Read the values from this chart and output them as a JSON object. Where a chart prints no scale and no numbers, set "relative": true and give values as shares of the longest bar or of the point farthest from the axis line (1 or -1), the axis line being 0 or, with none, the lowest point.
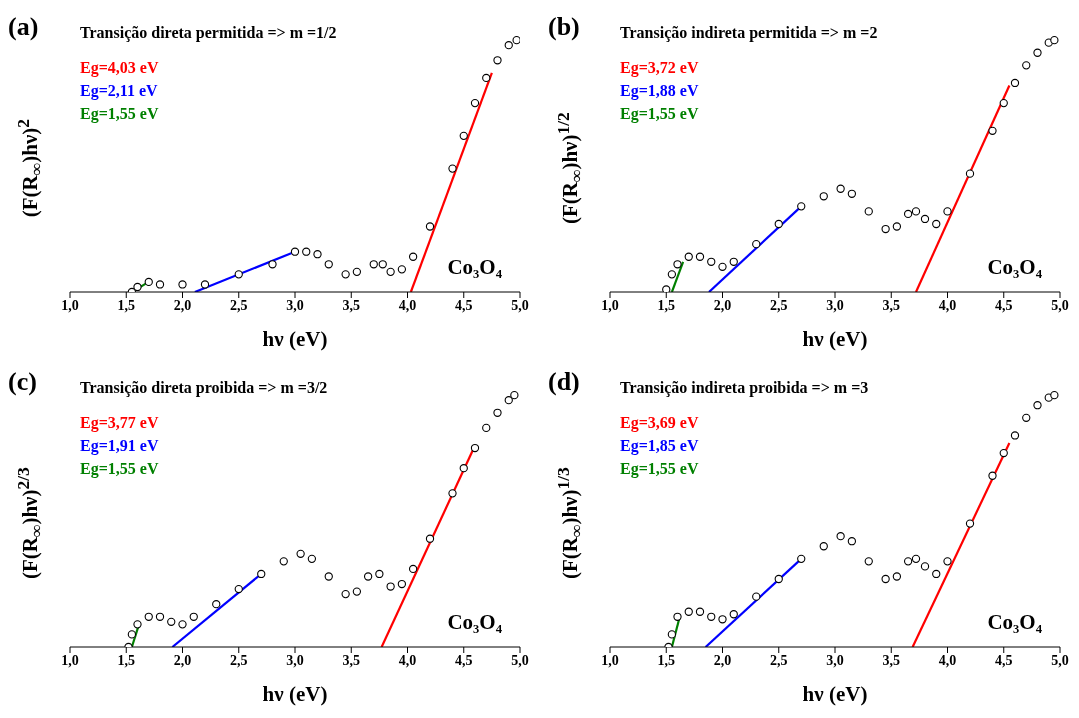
{
  "chart_data": [
    {
      "type": "scatter",
      "title": "Transição direta permitida => m =1/2",
      "xlabel": "hν (eV)",
      "ylabel": "(F(R$_{∞}$)hν)$^{2}$",
      "annotations": [
        "(a)",
        "Co₃O₄"
      ],
      "relative": true,
      "legend": "top left",
      "xlim": [
        1,
        5
      ],
      "xticks": [
        {
          "value": 1,
          "label": "1,0"
        },
        {
          "value": 1.5,
          "label": "1,5"
        },
        {
          "value": 2,
          "label": "2,0"
        },
        {
          "value": 2.5,
          "label": "2,5"
        },
        {
          "value": 3,
          "label": "3,0"
        },
        {
          "value": 3.5,
          "label": "3,5"
        },
        {
          "value": 4,
          "label": "4,0"
        },
        {
          "value": 4.5,
          "label": "4,5"
        },
        {
          "value": 5,
          "label": "5,0"
        }
      ],
      "series": [
        {
          "marker": "circle",
          "color": "#000000",
          "x": [
            1.55,
            1.6,
            1.7,
            1.8,
            2.0,
            2.2,
            2.5,
            2.8,
            3.0,
            3.1,
            3.2,
            3.3,
            3.45,
            3.55,
            3.7,
            3.78,
            3.85,
            3.95,
            4.05,
            4.2,
            4.4,
            4.5,
            4.6,
            4.7,
            4.8,
            4.9,
            4.97
          ],
          "values": [
            0,
            0.02,
            0.04,
            0.03,
            0.03,
            0.03,
            0.07,
            0.11,
            0.16,
            0.16,
            0.15,
            0.11,
            0.07,
            0.08,
            0.11,
            0.11,
            0.08,
            0.09,
            0.14,
            0.26,
            0.49,
            0.62,
            0.75,
            0.85,
            0.92,
            0.98,
            1
          ]
        },
        {
          "type": "line",
          "marker": "none",
          "line_style": "solid",
          "name": "Eg=4,03 eV",
          "color": "#ff0000",
          "x": [
            4.03,
            4.75
          ],
          "values": [
            0,
            0.87
          ]
        },
        {
          "type": "line",
          "marker": "none",
          "line_style": "solid",
          "name": "Eg=2,11 eV",
          "color": "#0000ff",
          "x": [
            2.11,
            3.0
          ],
          "values": [
            0,
            0.16
          ]
        },
        {
          "type": "line",
          "marker": "none",
          "line_style": "solid",
          "name": "Eg=1,55 eV",
          "color": "#008000",
          "x": [
            1.55,
            1.7
          ],
          "values": [
            0,
            0.04
          ]
        }
      ]
    },
    {
      "type": "scatter",
      "title": "Transição indireta permitida => m =2",
      "xlabel": "hν (eV)",
      "ylabel": "(F(R$_{∞}$)hν)$^{1/2}$",
      "annotations": [
        "(b)",
        "Co₃O₄"
      ],
      "relative": true,
      "legend": "top left",
      "xlim": [
        1,
        5
      ],
      "xticks": [
        {
          "value": 1,
          "label": "1,0"
        },
        {
          "value": 1.5,
          "label": "1,5"
        },
        {
          "value": 2,
          "label": "2,0"
        },
        {
          "value": 2.5,
          "label": "2,5"
        },
        {
          "value": 3,
          "label": "3,0"
        },
        {
          "value": 3.5,
          "label": "3,5"
        },
        {
          "value": 4,
          "label": "4,0"
        },
        {
          "value": 4.5,
          "label": "4,5"
        },
        {
          "value": 5,
          "label": "5,0"
        }
      ],
      "series": [
        {
          "marker": "circle",
          "color": "#000000",
          "x": [
            1.5,
            1.55,
            1.6,
            1.7,
            1.8,
            1.9,
            2.0,
            2.1,
            2.3,
            2.5,
            2.7,
            2.9,
            3.05,
            3.15,
            3.3,
            3.45,
            3.55,
            3.65,
            3.72,
            3.8,
            3.9,
            4.0,
            4.2,
            4.4,
            4.5,
            4.6,
            4.7,
            4.8,
            4.9,
            4.95
          ],
          "values": [
            0.01,
            0.07,
            0.11,
            0.14,
            0.14,
            0.12,
            0.1,
            0.12,
            0.19,
            0.27,
            0.34,
            0.38,
            0.41,
            0.39,
            0.32,
            0.25,
            0.26,
            0.31,
            0.32,
            0.29,
            0.27,
            0.32,
            0.47,
            0.64,
            0.75,
            0.83,
            0.9,
            0.95,
            0.99,
            1
          ]
        },
        {
          "type": "line",
          "marker": "none",
          "line_style": "solid",
          "name": "Eg=3,72 eV",
          "color": "#ff0000",
          "x": [
            3.72,
            4.55
          ],
          "values": [
            0,
            0.82
          ]
        },
        {
          "type": "line",
          "marker": "none",
          "line_style": "solid",
          "name": "Eg=1,88 eV",
          "color": "#0000ff",
          "x": [
            1.88,
            2.7
          ],
          "values": [
            0,
            0.34
          ]
        },
        {
          "type": "line",
          "marker": "none",
          "line_style": "solid",
          "name": "Eg=1,55 eV",
          "color": "#008000",
          "x": [
            1.55,
            1.65
          ],
          "values": [
            0,
            0.12
          ]
        }
      ]
    },
    {
      "type": "scatter",
      "title": "Transição direta proibida => m =3/2",
      "xlabel": "hν (eV)",
      "ylabel": "(F(R$_{∞}$)hν)$^{2/3}$",
      "annotations": [
        "(c)",
        "Co₃O₄"
      ],
      "relative": true,
      "legend": "top left",
      "xlim": [
        1,
        5
      ],
      "xticks": [
        {
          "value": 1,
          "label": "1,0"
        },
        {
          "value": 1.5,
          "label": "1,5"
        },
        {
          "value": 2,
          "label": "2,0"
        },
        {
          "value": 2.5,
          "label": "2,5"
        },
        {
          "value": 3,
          "label": "3,0"
        },
        {
          "value": 3.5,
          "label": "3,5"
        },
        {
          "value": 4,
          "label": "4,0"
        },
        {
          "value": 4.5,
          "label": "4,5"
        },
        {
          "value": 5,
          "label": "5,0"
        }
      ],
      "series": [
        {
          "marker": "circle",
          "color": "#000000",
          "x": [
            1.52,
            1.55,
            1.6,
            1.7,
            1.8,
            1.9,
            2.0,
            2.1,
            2.3,
            2.5,
            2.7,
            2.9,
            3.05,
            3.15,
            3.3,
            3.45,
            3.55,
            3.65,
            3.75,
            3.85,
            3.95,
            4.05,
            4.2,
            4.4,
            4.5,
            4.6,
            4.7,
            4.8,
            4.9,
            4.95
          ],
          "values": [
            0,
            0.05,
            0.09,
            0.12,
            0.12,
            0.1,
            0.09,
            0.12,
            0.17,
            0.23,
            0.29,
            0.34,
            0.37,
            0.35,
            0.28,
            0.21,
            0.22,
            0.28,
            0.29,
            0.24,
            0.25,
            0.31,
            0.43,
            0.61,
            0.71,
            0.79,
            0.87,
            0.93,
            0.98,
            1
          ]
        },
        {
          "type": "line",
          "marker": "none",
          "line_style": "solid",
          "name": "Eg=3,77 eV",
          "color": "#ff0000",
          "x": [
            3.77,
            4.6
          ],
          "values": [
            0,
            0.8
          ]
        },
        {
          "type": "line",
          "marker": "none",
          "line_style": "solid",
          "name": "Eg=1,91 eV",
          "color": "#0000ff",
          "x": [
            1.91,
            2.7
          ],
          "values": [
            0,
            0.29
          ]
        },
        {
          "type": "line",
          "marker": "none",
          "line_style": "solid",
          "name": "Eg=1,55 eV",
          "color": "#008000",
          "x": [
            1.55,
            1.62
          ],
          "values": [
            0,
            0.1
          ]
        }
      ]
    },
    {
      "type": "scatter",
      "title": "Transição indireta proibida => m =3",
      "xlabel": "hν (eV)",
      "ylabel": "(F(R$_{∞}$)hν)$^{1/3}$",
      "annotations": [
        "(d)",
        "Co₃O₄"
      ],
      "relative": true,
      "legend": "top left",
      "xlim": [
        1,
        5
      ],
      "xticks": [
        {
          "value": 1,
          "label": "1,0"
        },
        {
          "value": 1.5,
          "label": "1,5"
        },
        {
          "value": 2,
          "label": "2,0"
        },
        {
          "value": 2.5,
          "label": "2,5"
        },
        {
          "value": 3,
          "label": "3,0"
        },
        {
          "value": 3.5,
          "label": "3,5"
        },
        {
          "value": 4,
          "label": "4,0"
        },
        {
          "value": 4.5,
          "label": "4,5"
        },
        {
          "value": 5,
          "label": "5,0"
        }
      ],
      "series": [
        {
          "marker": "circle",
          "color": "#000000",
          "x": [
            1.52,
            1.55,
            1.6,
            1.7,
            1.8,
            1.9,
            2.0,
            2.1,
            2.3,
            2.5,
            2.7,
            2.9,
            3.05,
            3.15,
            3.3,
            3.45,
            3.55,
            3.65,
            3.72,
            3.8,
            3.9,
            4.0,
            4.2,
            4.4,
            4.5,
            4.6,
            4.7,
            4.8,
            4.9,
            4.95
          ],
          "values": [
            0,
            0.05,
            0.12,
            0.14,
            0.14,
            0.12,
            0.11,
            0.13,
            0.2,
            0.27,
            0.35,
            0.4,
            0.44,
            0.42,
            0.34,
            0.27,
            0.28,
            0.34,
            0.35,
            0.32,
            0.29,
            0.34,
            0.49,
            0.68,
            0.77,
            0.84,
            0.91,
            0.96,
            0.99,
            1
          ]
        },
        {
          "type": "line",
          "marker": "none",
          "line_style": "solid",
          "name": "Eg=3,69 eV",
          "color": "#ff0000",
          "x": [
            3.69,
            4.55
          ],
          "values": [
            0,
            0.81
          ]
        },
        {
          "type": "line",
          "marker": "none",
          "line_style": "solid",
          "name": "Eg=1,85 eV",
          "color": "#0000ff",
          "x": [
            1.85,
            2.7
          ],
          "values": [
            0,
            0.35
          ]
        },
        {
          "type": "line",
          "marker": "none",
          "line_style": "solid",
          "name": "Eg=1,55 eV",
          "color": "#008000",
          "x": [
            1.55,
            1.62
          ],
          "values": [
            0,
            0.12
          ]
        }
      ]
    }
  ]
}
